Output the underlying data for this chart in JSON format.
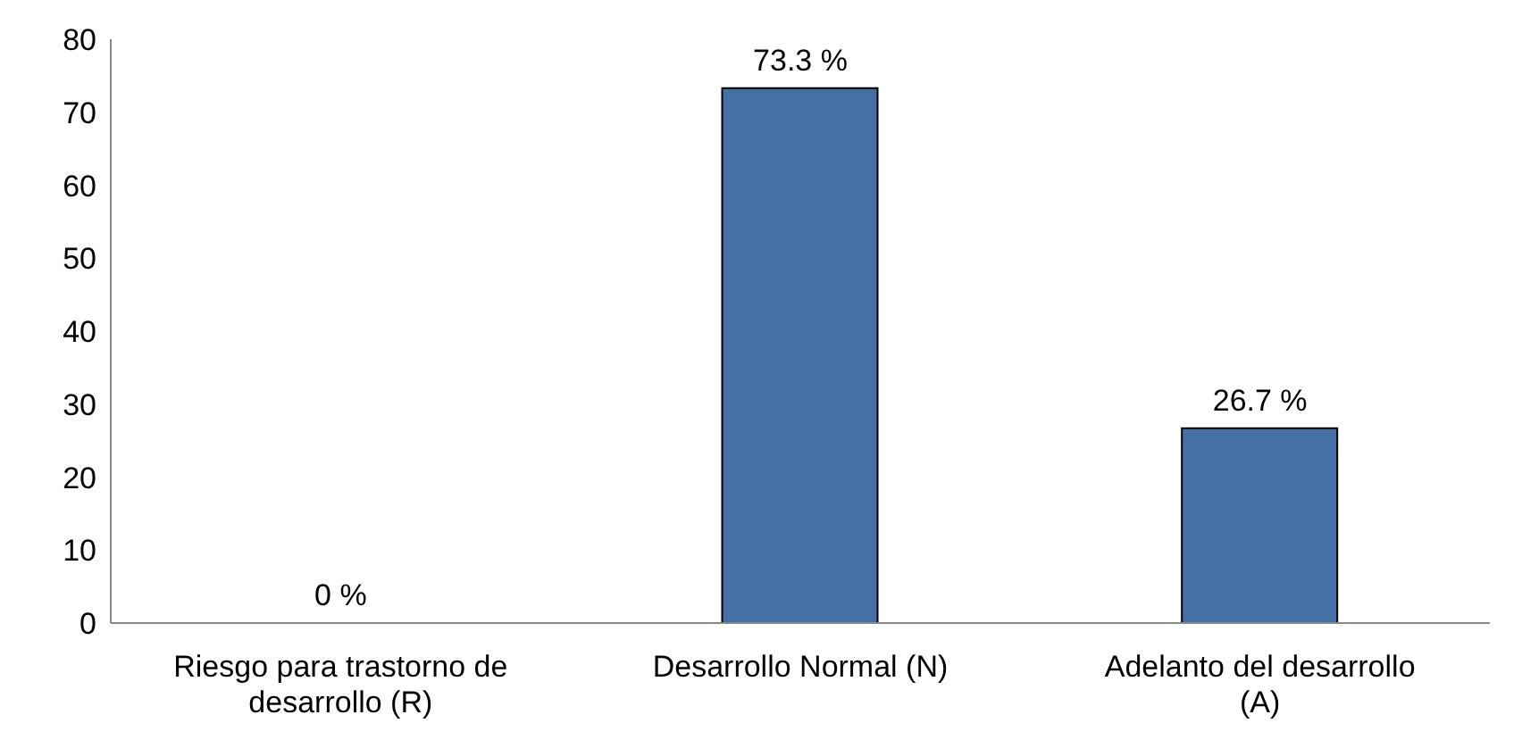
{
  "chart_data": {
    "type": "bar",
    "categories": [
      "Riesgo para trastorno de desarrollo (R)",
      "Desarrollo Normal (N)",
      "Adelanto del desarrollo (A)"
    ],
    "values": [
      0,
      73.3,
      26.7
    ],
    "value_labels": [
      "0 %",
      "73.3 %",
      "26.7 %"
    ],
    "color": "#4470a6",
    "ylim": [
      0,
      80
    ],
    "yticks": [
      0,
      10,
      20,
      30,
      40,
      50,
      60,
      70,
      80
    ],
    "grid": false,
    "legend": false
  }
}
